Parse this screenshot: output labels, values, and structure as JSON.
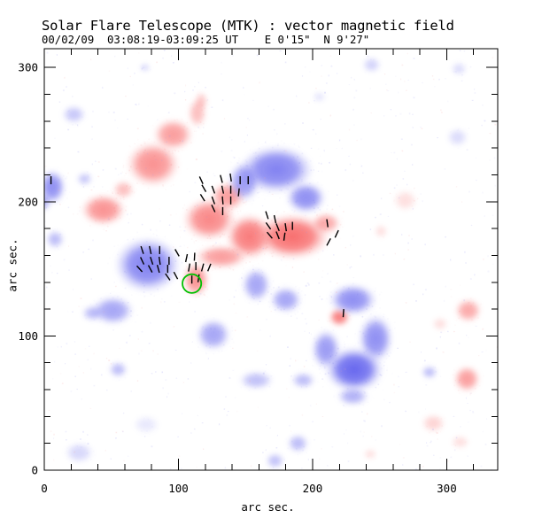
{
  "chart_data": {
    "type": "heatmap",
    "description": "vector magnetogram; red = positive polarity, blue = negative polarity, black strokes = transverse field vectors, green circle = region of interest",
    "title": "Solar Flare Telescope (MTK) : vector magnetic field",
    "subtitle": "00/02/09  03:08:19-03:09:25 UT    E 0'15\"  N 9'27\"",
    "xlabel": "arc sec.",
    "ylabel": "arc sec.",
    "xlim": [
      0,
      338
    ],
    "ylim": [
      0,
      314
    ],
    "xticks": [
      0,
      100,
      200,
      300
    ],
    "yticks": [
      0,
      100,
      200,
      300
    ],
    "minor_tick_step": 20,
    "grid": false,
    "units": "arcsec",
    "colors": {
      "positive": "#f86a6a",
      "negative": "#6565ee",
      "vector": "#000000",
      "roi": "#00c000",
      "axis": "#000000",
      "background": "#ffffff"
    },
    "positive_blobs": [
      [
        81,
        228,
        20,
        17,
        0.5
      ],
      [
        96,
        250,
        15,
        12,
        0.45
      ],
      [
        114,
        266,
        7,
        11,
        0.3
      ],
      [
        117,
        275,
        5,
        7,
        0.25
      ],
      [
        44,
        194,
        17,
        12,
        0.5
      ],
      [
        59,
        209,
        8,
        7,
        0.3
      ],
      [
        123,
        187,
        20,
        16,
        0.55
      ],
      [
        153,
        174,
        18,
        17,
        0.6
      ],
      [
        137,
        204,
        13,
        11,
        0.45
      ],
      [
        132,
        159,
        20,
        9,
        0.45
      ],
      [
        113,
        142,
        10,
        13,
        0.5
      ],
      [
        185,
        174,
        28,
        17,
        0.65
      ],
      [
        210,
        184,
        11,
        8,
        0.4
      ],
      [
        220,
        114,
        8,
        7,
        0.6
      ],
      [
        316,
        119,
        10,
        9,
        0.4
      ],
      [
        315,
        68,
        10,
        10,
        0.45
      ],
      [
        269,
        201,
        9,
        8,
        0.15
      ],
      [
        251,
        178,
        5,
        5,
        0.15
      ],
      [
        295,
        109,
        6,
        5,
        0.15
      ],
      [
        290,
        35,
        9,
        7,
        0.2
      ],
      [
        310,
        21,
        7,
        5,
        0.15
      ],
      [
        243,
        12,
        5,
        4,
        0.15
      ]
    ],
    "negative_blobs": [
      [
        6,
        211,
        10,
        13,
        0.5
      ],
      [
        0,
        200,
        5,
        7,
        0.35
      ],
      [
        22,
        265,
        9,
        7,
        0.25
      ],
      [
        30,
        217,
        6,
        5,
        0.25
      ],
      [
        8,
        172,
        7,
        7,
        0.3
      ],
      [
        77,
        153,
        25,
        21,
        0.55
      ],
      [
        51,
        119,
        16,
        11,
        0.4
      ],
      [
        36,
        117,
        8,
        6,
        0.3
      ],
      [
        173,
        224,
        28,
        18,
        0.55
      ],
      [
        195,
        203,
        15,
        12,
        0.5
      ],
      [
        149,
        215,
        12,
        15,
        0.45
      ],
      [
        158,
        138,
        11,
        13,
        0.4
      ],
      [
        180,
        127,
        12,
        10,
        0.4
      ],
      [
        230,
        127,
        18,
        12,
        0.5
      ],
      [
        247,
        98,
        13,
        18,
        0.5
      ],
      [
        210,
        90,
        11,
        15,
        0.45
      ],
      [
        231,
        75,
        22,
        17,
        0.7
      ],
      [
        230,
        55,
        12,
        7,
        0.35
      ],
      [
        126,
        101,
        13,
        12,
        0.4
      ],
      [
        55,
        75,
        7,
        6,
        0.3
      ],
      [
        158,
        67,
        13,
        7,
        0.28
      ],
      [
        193,
        67,
        9,
        6,
        0.3
      ],
      [
        189,
        20,
        8,
        7,
        0.3
      ],
      [
        172,
        7,
        7,
        6,
        0.28
      ],
      [
        26,
        13,
        11,
        8,
        0.18
      ],
      [
        75,
        300,
        4,
        3,
        0.2
      ],
      [
        244,
        302,
        7,
        6,
        0.2
      ],
      [
        309,
        299,
        6,
        5,
        0.16
      ],
      [
        308,
        248,
        8,
        7,
        0.16
      ],
      [
        287,
        73,
        6,
        5,
        0.3
      ],
      [
        205,
        278,
        5,
        4,
        0.12
      ],
      [
        76,
        34,
        10,
        7,
        0.1
      ]
    ],
    "vectors": {
      "length_arcsec": 6,
      "points": [
        [
          117,
          216,
          -25
        ],
        [
          132,
          217,
          -15
        ],
        [
          139,
          218,
          -8
        ],
        [
          146,
          216,
          0
        ],
        [
          152,
          216,
          0
        ],
        [
          119,
          210,
          -30
        ],
        [
          126,
          209,
          -20
        ],
        [
          133,
          209,
          -12
        ],
        [
          139,
          209,
          0
        ],
        [
          145,
          207,
          6
        ],
        [
          118,
          203,
          -32
        ],
        [
          126,
          201,
          -20
        ],
        [
          133,
          201,
          -5
        ],
        [
          139,
          201,
          0
        ],
        [
          126,
          195,
          -25
        ],
        [
          133,
          193,
          0
        ],
        [
          73,
          164,
          -18
        ],
        [
          79,
          164,
          -12
        ],
        [
          86,
          164,
          0
        ],
        [
          99,
          162,
          -30
        ],
        [
          73,
          156,
          -25
        ],
        [
          80,
          156,
          -18
        ],
        [
          86,
          156,
          -8
        ],
        [
          93,
          156,
          0
        ],
        [
          71,
          150,
          -42
        ],
        [
          79,
          150,
          -28
        ],
        [
          85,
          150,
          -15
        ],
        [
          92,
          150,
          0
        ],
        [
          92,
          144,
          -35
        ],
        [
          98,
          145,
          -28
        ],
        [
          106,
          158,
          12
        ],
        [
          112,
          159,
          3
        ],
        [
          108,
          151,
          10
        ],
        [
          113,
          152,
          0
        ],
        [
          118,
          151,
          15
        ],
        [
          123,
          151,
          22
        ],
        [
          110,
          142,
          0
        ],
        [
          115,
          143,
          8
        ],
        [
          166,
          190,
          -18
        ],
        [
          172,
          187,
          -12
        ],
        [
          167,
          182,
          -35
        ],
        [
          174,
          181,
          -22
        ],
        [
          180,
          181,
          -8
        ],
        [
          185,
          182,
          0
        ],
        [
          168,
          175,
          -40
        ],
        [
          174,
          175,
          -22
        ],
        [
          179,
          174,
          8
        ],
        [
          211,
          184,
          -8
        ],
        [
          218,
          176,
          25
        ],
        [
          212,
          170,
          28
        ],
        [
          223,
          117,
          4
        ],
        [
          5,
          216,
          0
        ]
      ]
    },
    "roi_circle": {
      "x": 110,
      "y": 139,
      "r": 7,
      "color": "#00c000"
    },
    "noise_seed": 20000209
  }
}
